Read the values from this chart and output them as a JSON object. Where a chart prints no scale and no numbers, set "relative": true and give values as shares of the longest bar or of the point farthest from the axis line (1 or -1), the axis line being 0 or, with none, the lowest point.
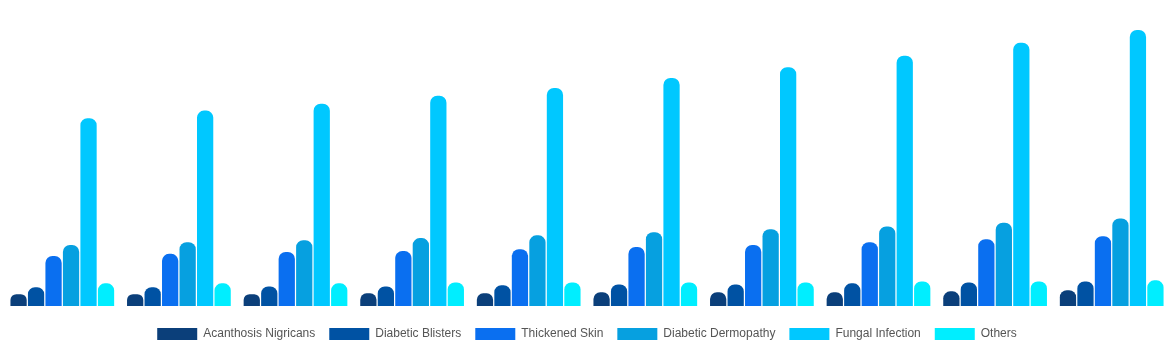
{
  "chart_data": {
    "type": "bar",
    "relative": true,
    "legend": "bottom",
    "categories": [
      null,
      null,
      null,
      null,
      null,
      null,
      null,
      null,
      null,
      null
    ],
    "series": [
      {
        "name": "Acanthosis Nigricans",
        "color": "#0b3f7a",
        "values": [
          0.043,
          0.043,
          0.043,
          0.046,
          0.046,
          0.05,
          0.05,
          0.05,
          0.053,
          0.057
        ]
      },
      {
        "name": "Diabetic Blisters",
        "color": "#0052a3",
        "values": [
          0.068,
          0.068,
          0.071,
          0.071,
          0.075,
          0.078,
          0.078,
          0.082,
          0.085,
          0.089
        ]
      },
      {
        "name": "Thickened Skin",
        "color": "#0a6ff0",
        "values": [
          0.181,
          0.189,
          0.196,
          0.199,
          0.206,
          0.214,
          0.221,
          0.231,
          0.242,
          0.253
        ]
      },
      {
        "name": "Diabetic Dermopathy",
        "color": "#06a0e0",
        "values": [
          0.221,
          0.231,
          0.238,
          0.246,
          0.256,
          0.267,
          0.278,
          0.288,
          0.302,
          0.317
        ]
      },
      {
        "name": "Fungal Infection",
        "color": "#00c8ff",
        "values": [
          0.68,
          0.708,
          0.733,
          0.762,
          0.79,
          0.826,
          0.865,
          0.907,
          0.954,
          1
        ]
      },
      {
        "name": "Others",
        "color": "#00eeff",
        "values": [
          0.082,
          0.082,
          0.082,
          0.085,
          0.085,
          0.085,
          0.085,
          0.089,
          0.089,
          0.093
        ]
      }
    ]
  }
}
